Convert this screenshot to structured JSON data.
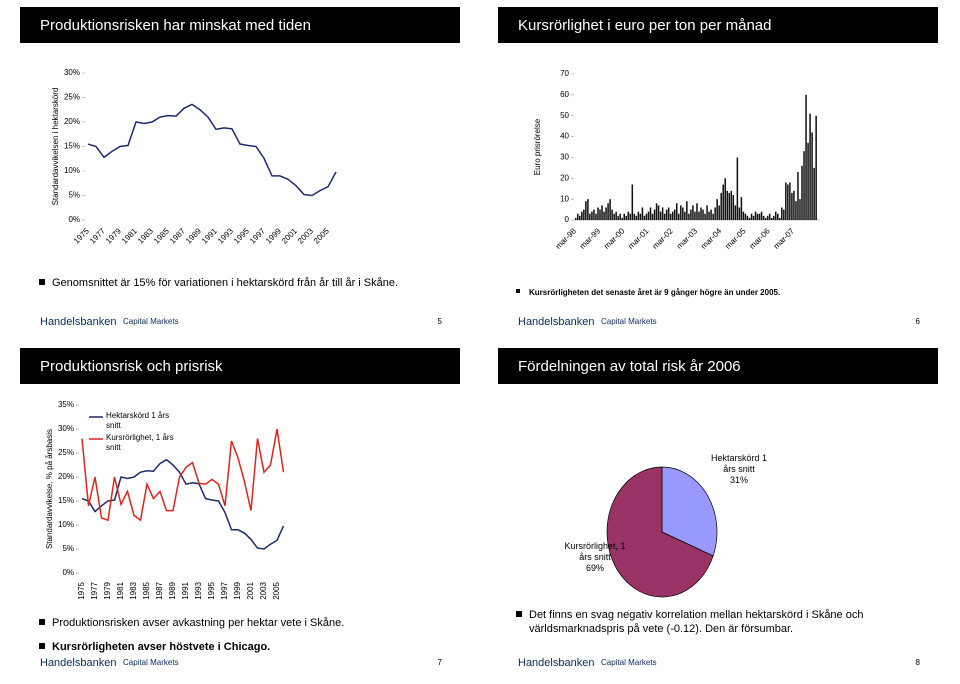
{
  "chart_data": [
    {
      "type": "line",
      "title": "Produktionsrisken har minskat med tiden",
      "ylabel": "Standardavvikelsen i hektarskörd",
      "categories": [
        "1975",
        null,
        "1977",
        null,
        "1979",
        null,
        "1981",
        null,
        "1983",
        null,
        "1985",
        null,
        "1987",
        null,
        "1989",
        null,
        "1991",
        null,
        "1993",
        null,
        "1995",
        null,
        "1997",
        null,
        "1999",
        null,
        "2001",
        null,
        "2003",
        null,
        "2005",
        null
      ],
      "series": [
        {
          "name": "Hektarskörd",
          "color": "#1f2a6e",
          "values": [
            15.5,
            15,
            12.8,
            14,
            15,
            15.2,
            20,
            19.7,
            20,
            21,
            21.3,
            21.2,
            22.8,
            23.6,
            22.5,
            21,
            18.5,
            18.8,
            18.6,
            15.5,
            15.2,
            15,
            12.6,
            9,
            9,
            8.3,
            7,
            5.2,
            5,
            6,
            6.8,
            9.8
          ]
        }
      ],
      "ylim": [
        0,
        30
      ],
      "yticks": [
        {
          "value": 0,
          "label": "0%"
        },
        {
          "value": 5,
          "label": "5%"
        },
        {
          "value": 10,
          "label": "10%"
        },
        {
          "value": 15,
          "label": "15%"
        },
        {
          "value": 20,
          "label": "20%"
        },
        {
          "value": 25,
          "label": "25%"
        },
        {
          "value": 30,
          "label": "30%"
        }
      ]
    },
    {
      "type": "bar",
      "title": "Kursrörlighet i euro per ton per månad",
      "ylabel": "Euro prisrörelse",
      "color": "#111111",
      "categories": [
        "mar-98",
        null,
        null,
        null,
        null,
        null,
        null,
        null,
        null,
        null,
        null,
        null,
        "mar-99",
        null,
        null,
        null,
        null,
        null,
        null,
        null,
        null,
        null,
        null,
        null,
        "mar-00",
        null,
        null,
        null,
        null,
        null,
        null,
        null,
        null,
        null,
        null,
        null,
        "mar-01",
        null,
        null,
        null,
        null,
        null,
        null,
        null,
        null,
        null,
        null,
        null,
        "mar-02",
        null,
        null,
        null,
        null,
        null,
        null,
        null,
        null,
        null,
        null,
        null,
        "mar-03",
        null,
        null,
        null,
        null,
        null,
        null,
        null,
        null,
        null,
        null,
        null,
        "mar-04",
        null,
        null,
        null,
        null,
        null,
        null,
        null,
        null,
        null,
        null,
        null,
        "mar-05",
        null,
        null,
        null,
        null,
        null,
        null,
        null,
        null,
        null,
        null,
        null,
        "mar-06",
        null,
        null,
        null,
        null,
        null,
        null,
        null,
        null,
        null,
        null,
        null,
        "mar-07",
        null,
        null,
        null,
        null,
        null,
        null,
        null,
        null,
        null,
        null,
        null
      ],
      "values": [
        1,
        3,
        2,
        4,
        5,
        9,
        10,
        3,
        4,
        5,
        3,
        6,
        5,
        7,
        4,
        6,
        8,
        10,
        5,
        3,
        4,
        2,
        3,
        1,
        3,
        2,
        4,
        3,
        17,
        3,
        2,
        4,
        3,
        6,
        2,
        3,
        4,
        6,
        3,
        5,
        8,
        7,
        4,
        6,
        3,
        5,
        6,
        3,
        4,
        5,
        8,
        3,
        7,
        6,
        4,
        9,
        3,
        5,
        7,
        4,
        8,
        4,
        6,
        5,
        3,
        7,
        4,
        5,
        3,
        6,
        10,
        7,
        13,
        17,
        20,
        14,
        13,
        14,
        12,
        7,
        30,
        6,
        11,
        4,
        3,
        2,
        1,
        3,
        2,
        4,
        3,
        3,
        4,
        2,
        1,
        2,
        3,
        1,
        2,
        4,
        3,
        1,
        6,
        5,
        18,
        17,
        18,
        13,
        14,
        9,
        23,
        10,
        26,
        33,
        60,
        37,
        51,
        42,
        25,
        50
      ],
      "ylim": [
        0,
        70
      ],
      "yticks": [
        0,
        10,
        20,
        30,
        40,
        50,
        60,
        70
      ]
    },
    {
      "type": "line",
      "title": "Produktionsrisk och prisrisk",
      "ylabel": "Standardavvikelse, % på årsbasis",
      "legend": "upper left",
      "categories": [
        "1975",
        null,
        "1977",
        null,
        "1979",
        null,
        "1981",
        null,
        "1983",
        null,
        "1985",
        null,
        "1987",
        null,
        "1989",
        null,
        "1991",
        null,
        "1993",
        null,
        "1995",
        null,
        "1997",
        null,
        "1999",
        null,
        "2001",
        null,
        "2003",
        null,
        "2005",
        null
      ],
      "series": [
        {
          "name": "Hektarskörd 1 års snitt",
          "color": "#1f2a6e",
          "values": [
            15.5,
            15,
            12.8,
            14,
            15,
            15.2,
            20,
            19.7,
            20,
            21,
            21.3,
            21.2,
            22.8,
            23.6,
            22.5,
            21,
            18.5,
            18.8,
            18.6,
            15.5,
            15.2,
            15,
            12.6,
            9,
            9,
            8.3,
            7,
            5.2,
            5,
            6,
            6.8,
            9.8
          ]
        },
        {
          "name": "Kursrörlighet, 1 års snitt",
          "color": "#e0231c",
          "values": [
            28,
            14,
            20,
            11.5,
            11,
            20,
            14.3,
            17,
            12,
            11,
            18.5,
            15.5,
            17,
            13,
            13,
            20,
            22,
            23,
            18.7,
            18.5,
            19.5,
            18.5,
            14,
            27.5,
            24,
            19,
            13,
            28,
            21,
            22.5,
            30,
            21
          ]
        }
      ],
      "ylim": [
        0,
        35
      ],
      "yticks": [
        {
          "value": 0,
          "label": "0%"
        },
        {
          "value": 5,
          "label": "5%"
        },
        {
          "value": 10,
          "label": "10%"
        },
        {
          "value": 15,
          "label": "15%"
        },
        {
          "value": 20,
          "label": "20%"
        },
        {
          "value": 25,
          "label": "25%"
        },
        {
          "value": 30,
          "label": "30%"
        },
        {
          "value": 35,
          "label": "35%"
        }
      ]
    },
    {
      "type": "pie",
      "title": "Fördelningen av total risk år 2006",
      "categories": [
        "Hektarskörd 1 års snitt",
        "Kursrörlighet, 1 års snitt"
      ],
      "values": [
        31,
        69
      ],
      "value_labels": [
        "31%",
        "69%"
      ],
      "colors": [
        "#9999ff",
        "#993366"
      ]
    }
  ],
  "slides": [
    {
      "bullets": [
        "Genomsnittet är 15% för variationen i hektarskörd från år till år i Skåne."
      ],
      "footer": {
        "brand": "Handelsbanken",
        "unit": "Capital Markets",
        "page": 5
      }
    },
    {
      "bullets": [
        "Kursrörligheten det senaste året är 9 gånger högre än under 2005."
      ],
      "footer": {
        "brand": "Handelsbanken",
        "unit": "Capital Markets",
        "page": 6
      }
    },
    {
      "bullets": [
        "Produktionsrisken avser avkastning per hektar vete i Skåne.",
        "Kursrörligheten avser höstvete i Chicago."
      ],
      "footer": {
        "brand": "Handelsbanken",
        "unit": "Capital Markets",
        "page": 7
      }
    },
    {
      "bullets": [
        "Det finns en svag negativ korrelation mellan hektarskörd i Skåne och världsmarknadspris på vete (-0.12). Den är försumbar."
      ],
      "footer": {
        "brand": "Handelsbanken",
        "unit": "Capital Markets",
        "page": 8
      }
    }
  ]
}
